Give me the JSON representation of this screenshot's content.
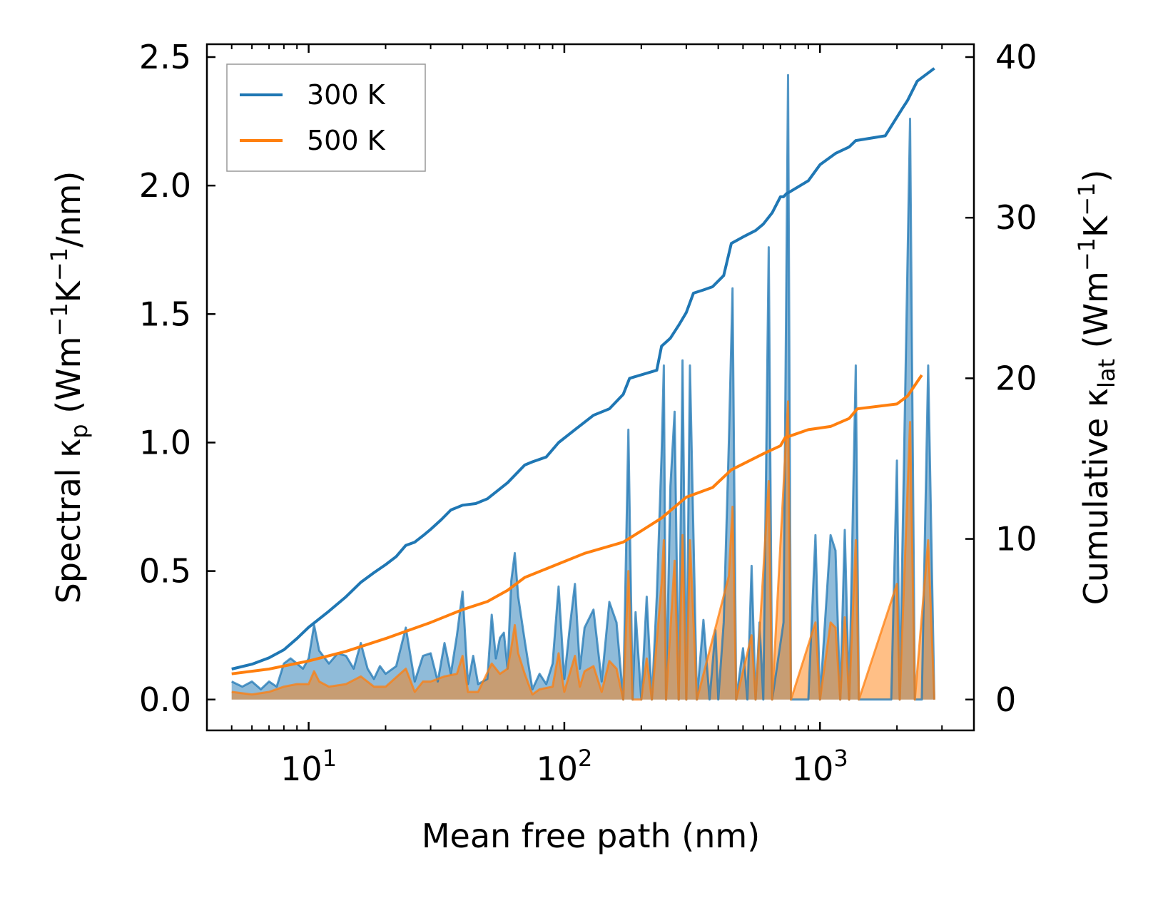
{
  "chart_data": {
    "type": "line",
    "title": "",
    "xlabel": "Mean free path (nm)",
    "xscale": "log",
    "xlim": [
      4,
      4000
    ],
    "ylabel_left": {
      "main": "Spectral κ",
      "sub": "p",
      "unit_open": " (Wm",
      "sup1": "−1",
      "unit_mid": "K",
      "sup2": "−1",
      "unit_close": "/nm)"
    },
    "ylabel_right": {
      "main": "Cumulative κ",
      "sub": "lat",
      "unit_open": " (Wm",
      "sup1": "−1",
      "unit_mid": "K",
      "sup2": "−1",
      "unit_close": ")"
    },
    "ylim_left": [
      -0.12,
      2.55
    ],
    "ylim_right": [
      -1.92,
      40.8
    ],
    "xticks": [
      {
        "base": "10",
        "exp": "1",
        "value": 10
      },
      {
        "base": "10",
        "exp": "2",
        "value": 100
      },
      {
        "base": "10",
        "exp": "3",
        "value": 1000
      }
    ],
    "yticks_left": [
      {
        "label": "0.0",
        "value": 0
      },
      {
        "label": "0.5",
        "value": 0.5
      },
      {
        "label": "1.0",
        "value": 1.0
      },
      {
        "label": "1.5",
        "value": 1.5
      },
      {
        "label": "2.0",
        "value": 2.0
      },
      {
        "label": "2.5",
        "value": 2.5
      }
    ],
    "yticks_right": [
      {
        "label": "0",
        "value": 0
      },
      {
        "label": "10",
        "value": 10
      },
      {
        "label": "20",
        "value": 20
      },
      {
        "label": "30",
        "value": 30
      },
      {
        "label": "40",
        "value": 40
      }
    ],
    "legend": {
      "position": "upper-left",
      "entries": [
        {
          "label": "300 K",
          "color": "#1f77b4"
        },
        {
          "label": "500 K",
          "color": "#ff7f0e"
        }
      ]
    },
    "cumulative": [
      {
        "name": "300 K",
        "axis": "right",
        "color": "#1f77b4",
        "points": [
          [
            5,
            1.9
          ],
          [
            6,
            2.2
          ],
          [
            7,
            2.6
          ],
          [
            8,
            3.1
          ],
          [
            9,
            3.8
          ],
          [
            10,
            4.5
          ],
          [
            12,
            5.5
          ],
          [
            14,
            6.4
          ],
          [
            16,
            7.3
          ],
          [
            18,
            7.9
          ],
          [
            20,
            8.4
          ],
          [
            22,
            8.9
          ],
          [
            24,
            9.6
          ],
          [
            26,
            9.8
          ],
          [
            28,
            10.2
          ],
          [
            30,
            10.6
          ],
          [
            33,
            11.2
          ],
          [
            36,
            11.8
          ],
          [
            40,
            12.1
          ],
          [
            45,
            12.2
          ],
          [
            50,
            12.5
          ],
          [
            60,
            13.5
          ],
          [
            70,
            14.6
          ],
          [
            75,
            14.8
          ],
          [
            85,
            15.1
          ],
          [
            95,
            16.0
          ],
          [
            110,
            16.8
          ],
          [
            130,
            17.7
          ],
          [
            150,
            18.1
          ],
          [
            170,
            19.0
          ],
          [
            180,
            20.0
          ],
          [
            230,
            20.5
          ],
          [
            240,
            22.0
          ],
          [
            260,
            22.5
          ],
          [
            280,
            23.3
          ],
          [
            300,
            24.1
          ],
          [
            320,
            25.3
          ],
          [
            350,
            25.5
          ],
          [
            380,
            25.7
          ],
          [
            420,
            26.4
          ],
          [
            450,
            28.4
          ],
          [
            500,
            28.8
          ],
          [
            560,
            29.2
          ],
          [
            600,
            29.6
          ],
          [
            650,
            30.3
          ],
          [
            700,
            31.3
          ],
          [
            720,
            31.3
          ],
          [
            740,
            31.5
          ],
          [
            760,
            31.6
          ],
          [
            900,
            32.3
          ],
          [
            1000,
            33.3
          ],
          [
            1150,
            34.0
          ],
          [
            1300,
            34.4
          ],
          [
            1380,
            34.8
          ],
          [
            1800,
            35.1
          ],
          [
            2100,
            36.8
          ],
          [
            2200,
            37.3
          ],
          [
            2400,
            38.5
          ],
          [
            2800,
            39.3
          ]
        ]
      },
      {
        "name": "500 K",
        "axis": "right",
        "color": "#ff7f0e",
        "points": [
          [
            5,
            1.6
          ],
          [
            7,
            1.9
          ],
          [
            10,
            2.4
          ],
          [
            14,
            3.0
          ],
          [
            20,
            3.8
          ],
          [
            30,
            4.8
          ],
          [
            40,
            5.6
          ],
          [
            50,
            6.1
          ],
          [
            60,
            6.8
          ],
          [
            70,
            7.6
          ],
          [
            90,
            8.3
          ],
          [
            120,
            9.1
          ],
          [
            170,
            9.8
          ],
          [
            200,
            10.5
          ],
          [
            240,
            11.3
          ],
          [
            300,
            12.6
          ],
          [
            380,
            13.2
          ],
          [
            450,
            14.3
          ],
          [
            600,
            15.3
          ],
          [
            700,
            15.8
          ],
          [
            730,
            16.3
          ],
          [
            900,
            16.8
          ],
          [
            1100,
            17.0
          ],
          [
            1300,
            17.5
          ],
          [
            1400,
            18.1
          ],
          [
            2000,
            18.4
          ],
          [
            2200,
            18.9
          ],
          [
            2500,
            20.2
          ]
        ]
      }
    ],
    "spectral": [
      {
        "name": "300 K",
        "axis": "left",
        "color": "#1f77b4",
        "points": [
          [
            5,
            0.07
          ],
          [
            5.5,
            0.05
          ],
          [
            6,
            0.07
          ],
          [
            6.5,
            0.04
          ],
          [
            7,
            0.07
          ],
          [
            7.5,
            0.05
          ],
          [
            8,
            0.14
          ],
          [
            8.5,
            0.16
          ],
          [
            9,
            0.14
          ],
          [
            9.5,
            0.12
          ],
          [
            10,
            0.16
          ],
          [
            10.5,
            0.29
          ],
          [
            11,
            0.19
          ],
          [
            12,
            0.14
          ],
          [
            13,
            0.18
          ],
          [
            14,
            0.17
          ],
          [
            15,
            0.12
          ],
          [
            16,
            0.22
          ],
          [
            17,
            0.12
          ],
          [
            18,
            0.08
          ],
          [
            19,
            0.13
          ],
          [
            20,
            0.1
          ],
          [
            22,
            0.13
          ],
          [
            24,
            0.28
          ],
          [
            26,
            0.07
          ],
          [
            28,
            0.17
          ],
          [
            30,
            0.18
          ],
          [
            32,
            0.07
          ],
          [
            34,
            0.22
          ],
          [
            36,
            0.1
          ],
          [
            38,
            0.25
          ],
          [
            40,
            0.42
          ],
          [
            42,
            0.06
          ],
          [
            44,
            0.17
          ],
          [
            46,
            0.06
          ],
          [
            50,
            0.08
          ],
          [
            52,
            0.33
          ],
          [
            54,
            0.16
          ],
          [
            56,
            0.24
          ],
          [
            58,
            0.26
          ],
          [
            60,
            0.12
          ],
          [
            62,
            0.46
          ],
          [
            64,
            0.57
          ],
          [
            66,
            0.4
          ],
          [
            70,
            0.23
          ],
          [
            75,
            0.04
          ],
          [
            80,
            0.1
          ],
          [
            85,
            0.06
          ],
          [
            90,
            0.14
          ],
          [
            95,
            0.44
          ],
          [
            100,
            0.08
          ],
          [
            105,
            0.28
          ],
          [
            110,
            0.45
          ],
          [
            115,
            0.12
          ],
          [
            120,
            0.28
          ],
          [
            130,
            0.35
          ],
          [
            140,
            0.07
          ],
          [
            150,
            0.38
          ],
          [
            160,
            0.3
          ],
          [
            170,
            0.0
          ],
          [
            178,
            1.05
          ],
          [
            185,
            0.0
          ],
          [
            190,
            0.34
          ],
          [
            200,
            0.0
          ],
          [
            210,
            0.4
          ],
          [
            220,
            0.0
          ],
          [
            230,
            0.4
          ],
          [
            240,
            0.95
          ],
          [
            245,
            1.3
          ],
          [
            250,
            0.0
          ],
          [
            260,
            0.83
          ],
          [
            270,
            1.12
          ],
          [
            280,
            0.0
          ],
          [
            290,
            1.32
          ],
          [
            300,
            0.0
          ],
          [
            310,
            1.3
          ],
          [
            330,
            0.0
          ],
          [
            350,
            0.31
          ],
          [
            370,
            0.0
          ],
          [
            390,
            0.27
          ],
          [
            400,
            0.0
          ],
          [
            420,
            0.3
          ],
          [
            440,
            1.0
          ],
          [
            455,
            1.6
          ],
          [
            470,
            0.0
          ],
          [
            500,
            0.2
          ],
          [
            520,
            0.0
          ],
          [
            540,
            0.52
          ],
          [
            560,
            0.0
          ],
          [
            580,
            0.3
          ],
          [
            600,
            0.0
          ],
          [
            630,
            1.76
          ],
          [
            650,
            0.0
          ],
          [
            720,
            0.3
          ],
          [
            750,
            2.43
          ],
          [
            770,
            0.0
          ],
          [
            900,
            0.0
          ],
          [
            960,
            0.64
          ],
          [
            1000,
            0.0
          ],
          [
            1100,
            0.64
          ],
          [
            1150,
            0.58
          ],
          [
            1200,
            0.0
          ],
          [
            1250,
            0.66
          ],
          [
            1300,
            0.0
          ],
          [
            1380,
            1.3
          ],
          [
            1420,
            0.0
          ],
          [
            1900,
            0.0
          ],
          [
            2000,
            0.93
          ],
          [
            2050,
            0.0
          ],
          [
            2250,
            2.26
          ],
          [
            2350,
            0.0
          ],
          [
            2500,
            0.0
          ],
          [
            2650,
            1.3
          ],
          [
            2800,
            0.0
          ]
        ]
      },
      {
        "name": "500 K",
        "axis": "left",
        "color": "#ff7f0e",
        "points": [
          [
            5,
            0.03
          ],
          [
            6,
            0.02
          ],
          [
            7,
            0.03
          ],
          [
            8,
            0.05
          ],
          [
            9,
            0.06
          ],
          [
            10,
            0.06
          ],
          [
            10.5,
            0.11
          ],
          [
            11,
            0.07
          ],
          [
            12,
            0.05
          ],
          [
            14,
            0.06
          ],
          [
            16,
            0.09
          ],
          [
            18,
            0.05
          ],
          [
            20,
            0.05
          ],
          [
            24,
            0.12
          ],
          [
            26,
            0.03
          ],
          [
            28,
            0.07
          ],
          [
            30,
            0.07
          ],
          [
            34,
            0.09
          ],
          [
            38,
            0.1
          ],
          [
            40,
            0.17
          ],
          [
            42,
            0.03
          ],
          [
            46,
            0.03
          ],
          [
            52,
            0.14
          ],
          [
            56,
            0.1
          ],
          [
            60,
            0.12
          ],
          [
            62,
            0.2
          ],
          [
            64,
            0.29
          ],
          [
            66,
            0.18
          ],
          [
            70,
            0.1
          ],
          [
            75,
            0.02
          ],
          [
            80,
            0.04
          ],
          [
            90,
            0.05
          ],
          [
            95,
            0.18
          ],
          [
            100,
            0.03
          ],
          [
            110,
            0.17
          ],
          [
            115,
            0.05
          ],
          [
            120,
            0.11
          ],
          [
            130,
            0.13
          ],
          [
            140,
            0.03
          ],
          [
            150,
            0.15
          ],
          [
            160,
            0.12
          ],
          [
            170,
            0.0
          ],
          [
            178,
            0.5
          ],
          [
            185,
            0.0
          ],
          [
            200,
            0.0
          ],
          [
            210,
            0.16
          ],
          [
            220,
            0.0
          ],
          [
            240,
            0.45
          ],
          [
            245,
            0.62
          ],
          [
            250,
            0.0
          ],
          [
            270,
            0.54
          ],
          [
            280,
            0.0
          ],
          [
            290,
            0.64
          ],
          [
            300,
            0.0
          ],
          [
            310,
            0.62
          ],
          [
            330,
            0.0
          ],
          [
            440,
            0.48
          ],
          [
            455,
            0.75
          ],
          [
            470,
            0.0
          ],
          [
            540,
            0.25
          ],
          [
            560,
            0.0
          ],
          [
            630,
            0.85
          ],
          [
            650,
            0.0
          ],
          [
            750,
            1.16
          ],
          [
            770,
            0.0
          ],
          [
            960,
            0.3
          ],
          [
            1000,
            0.0
          ],
          [
            1100,
            0.3
          ],
          [
            1150,
            0.28
          ],
          [
            1200,
            0.0
          ],
          [
            1250,
            0.32
          ],
          [
            1300,
            0.0
          ],
          [
            1380,
            0.62
          ],
          [
            1420,
            0.0
          ],
          [
            2000,
            0.45
          ],
          [
            2050,
            0.0
          ],
          [
            2250,
            1.08
          ],
          [
            2350,
            0.0
          ],
          [
            2650,
            0.62
          ],
          [
            2800,
            0.0
          ]
        ]
      }
    ]
  }
}
